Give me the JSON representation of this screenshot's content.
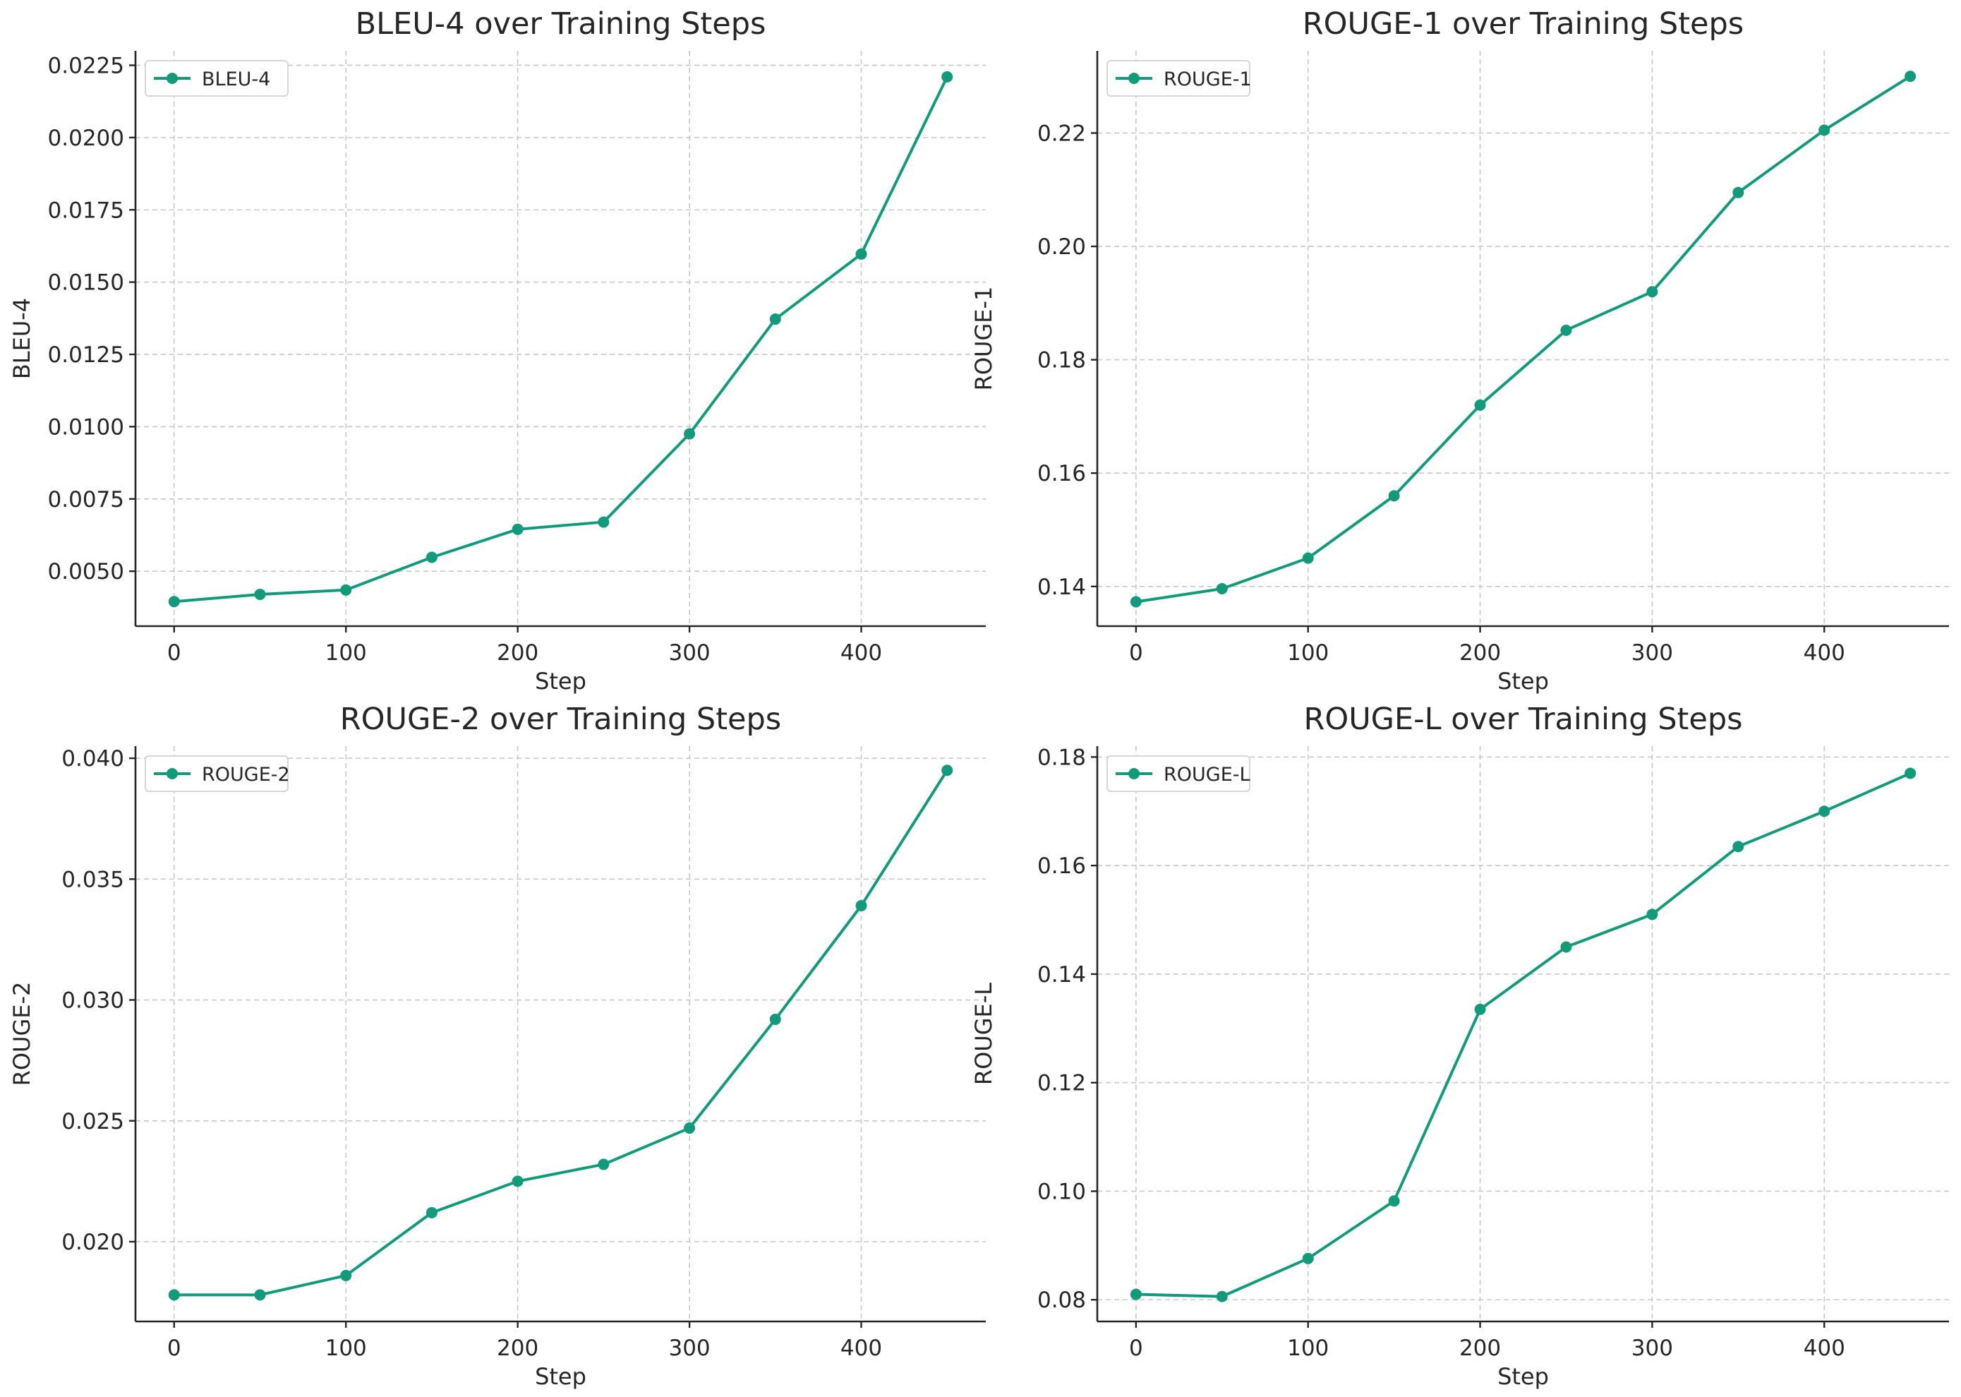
{
  "figure": {
    "series_color": "#129a7b"
  },
  "chart_data": [
    {
      "type": "line",
      "title": "BLEU-4 over Training Steps",
      "xlabel": "Step",
      "ylabel": "BLEU-4",
      "legend": "top-left",
      "grid": true,
      "marker": "circle",
      "xlim": [
        -22.5,
        472.5
      ],
      "ylim": [
        0.0031,
        0.023
      ],
      "xticks": [
        0,
        100,
        200,
        300,
        400
      ],
      "yticks": [
        0.005,
        0.0075,
        0.01,
        0.0125,
        0.015,
        0.0175,
        0.02,
        0.0225
      ],
      "ytick_labels": [
        "0.0050",
        "0.0075",
        "0.0100",
        "0.0125",
        "0.0150",
        "0.0175",
        "0.0200",
        "0.0225"
      ],
      "series": [
        {
          "name": "BLEU-4",
          "x": [
            0,
            50,
            100,
            150,
            200,
            250,
            300,
            350,
            400,
            450
          ],
          "y": [
            0.00395,
            0.0042,
            0.00435,
            0.00548,
            0.00645,
            0.0067,
            0.00975,
            0.01372,
            0.01597,
            0.0221
          ]
        }
      ]
    },
    {
      "type": "line",
      "title": "ROUGE-1 over Training Steps",
      "xlabel": "Step",
      "ylabel": "ROUGE-1",
      "legend": "top-left",
      "grid": true,
      "marker": "circle",
      "xlim": [
        -22.5,
        472.5
      ],
      "ylim": [
        0.133,
        0.2345
      ],
      "xticks": [
        0,
        100,
        200,
        300,
        400
      ],
      "yticks": [
        0.14,
        0.16,
        0.18,
        0.2,
        0.22
      ],
      "ytick_labels": [
        "0.14",
        "0.16",
        "0.18",
        "0.20",
        "0.22"
      ],
      "series": [
        {
          "name": "ROUGE-1",
          "x": [
            0,
            50,
            100,
            150,
            200,
            250,
            300,
            350,
            400,
            450
          ],
          "y": [
            0.1373,
            0.1396,
            0.145,
            0.156,
            0.172,
            0.1852,
            0.192,
            0.2095,
            0.2205,
            0.23
          ]
        }
      ]
    },
    {
      "type": "line",
      "title": "ROUGE-2 over Training Steps",
      "xlabel": "Step",
      "ylabel": "ROUGE-2",
      "legend": "top-left",
      "grid": true,
      "marker": "circle",
      "xlim": [
        -22.5,
        472.5
      ],
      "ylim": [
        0.0167,
        0.0405
      ],
      "xticks": [
        0,
        100,
        200,
        300,
        400
      ],
      "yticks": [
        0.02,
        0.025,
        0.03,
        0.035,
        0.04
      ],
      "ytick_labels": [
        "0.020",
        "0.025",
        "0.030",
        "0.035",
        "0.040"
      ],
      "series": [
        {
          "name": "ROUGE-2",
          "x": [
            0,
            50,
            100,
            150,
            200,
            250,
            300,
            350,
            400,
            450
          ],
          "y": [
            0.0178,
            0.0178,
            0.0186,
            0.0212,
            0.0225,
            0.0232,
            0.0247,
            0.0292,
            0.0339,
            0.0395
          ]
        }
      ]
    },
    {
      "type": "line",
      "title": "ROUGE-L over Training Steps",
      "xlabel": "Step",
      "ylabel": "ROUGE-L",
      "legend": "top-left",
      "grid": true,
      "marker": "circle",
      "xlim": [
        -22.5,
        472.5
      ],
      "ylim": [
        0.076,
        0.182
      ],
      "xticks": [
        0,
        100,
        200,
        300,
        400
      ],
      "yticks": [
        0.08,
        0.1,
        0.12,
        0.14,
        0.16,
        0.18
      ],
      "ytick_labels": [
        "0.08",
        "0.10",
        "0.12",
        "0.14",
        "0.16",
        "0.18"
      ],
      "series": [
        {
          "name": "ROUGE-L",
          "x": [
            0,
            50,
            100,
            150,
            200,
            250,
            300,
            350,
            400,
            450
          ],
          "y": [
            0.081,
            0.0806,
            0.0876,
            0.0982,
            0.1335,
            0.145,
            0.151,
            0.1635,
            0.17,
            0.177
          ]
        }
      ]
    }
  ]
}
